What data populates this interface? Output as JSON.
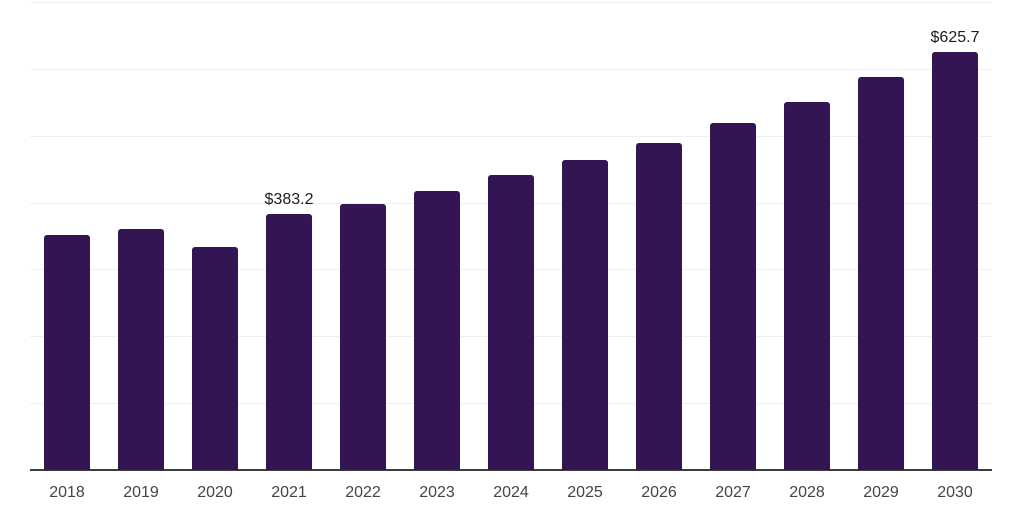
{
  "chart_data": {
    "type": "bar",
    "title": "",
    "xlabel": "",
    "ylabel": "",
    "categories": [
      "2018",
      "2019",
      "2020",
      "2021",
      "2022",
      "2023",
      "2024",
      "2025",
      "2026",
      "2027",
      "2028",
      "2029",
      "2030"
    ],
    "values": [
      351.6,
      360.5,
      333.7,
      383.2,
      397.7,
      417.0,
      440.8,
      463.1,
      488.9,
      518.6,
      550.3,
      588.1,
      625.7
    ],
    "data_labels": {
      "2021": "$383.2",
      "2030": "$625.7"
    },
    "value_prefix": "$",
    "ylim": [
      0,
      700
    ],
    "gridline_step": 100,
    "grid": "horizontal-only",
    "legend": "none",
    "y_axis_labels_visible": false,
    "colors": {
      "bar": "#331554",
      "gridline": "#efefef",
      "axis_line": "#3d3d3d",
      "tick_label": "#444444",
      "data_label": "#1c1c1c",
      "background": "#ffffff"
    }
  }
}
